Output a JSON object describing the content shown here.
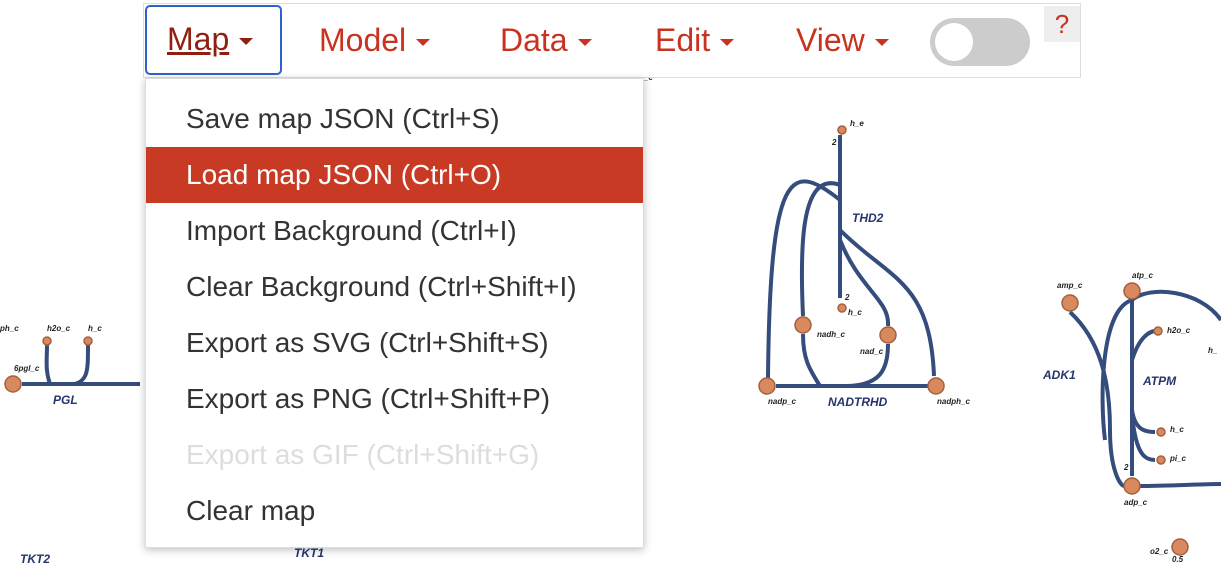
{
  "menubar": {
    "items": [
      "Map",
      "Model",
      "Data",
      "Edit",
      "View"
    ],
    "help": "?"
  },
  "dropdown": {
    "items": [
      "Save map JSON (Ctrl+S)",
      "Load map JSON (Ctrl+O)",
      "Import Background (Ctrl+I)",
      "Clear Background (Ctrl+Shift+I)",
      "Export as SVG (Ctrl+Shift+S)",
      "Export as PNG (Ctrl+Shift+P)",
      "Export as GIF (Ctrl+Shift+G)",
      "Clear map"
    ]
  },
  "map": {
    "labels": [
      "h_e",
      "2",
      "THD2",
      "2",
      "h_c",
      "nadh_c",
      "nad_c",
      "nadp_c",
      "NADTRHD",
      "nadph_c",
      "amp_c",
      "atp_c",
      "h2o_c",
      "h_",
      "ADK1",
      "ATPM",
      "h_c",
      "pi_c",
      "2",
      "adp_c",
      "o2_c",
      "0.5",
      "ph_c",
      "h2o_c",
      "h_c",
      "6pgl_c",
      "PGL",
      "TKT2",
      "TKT1",
      "_e"
    ]
  }
}
